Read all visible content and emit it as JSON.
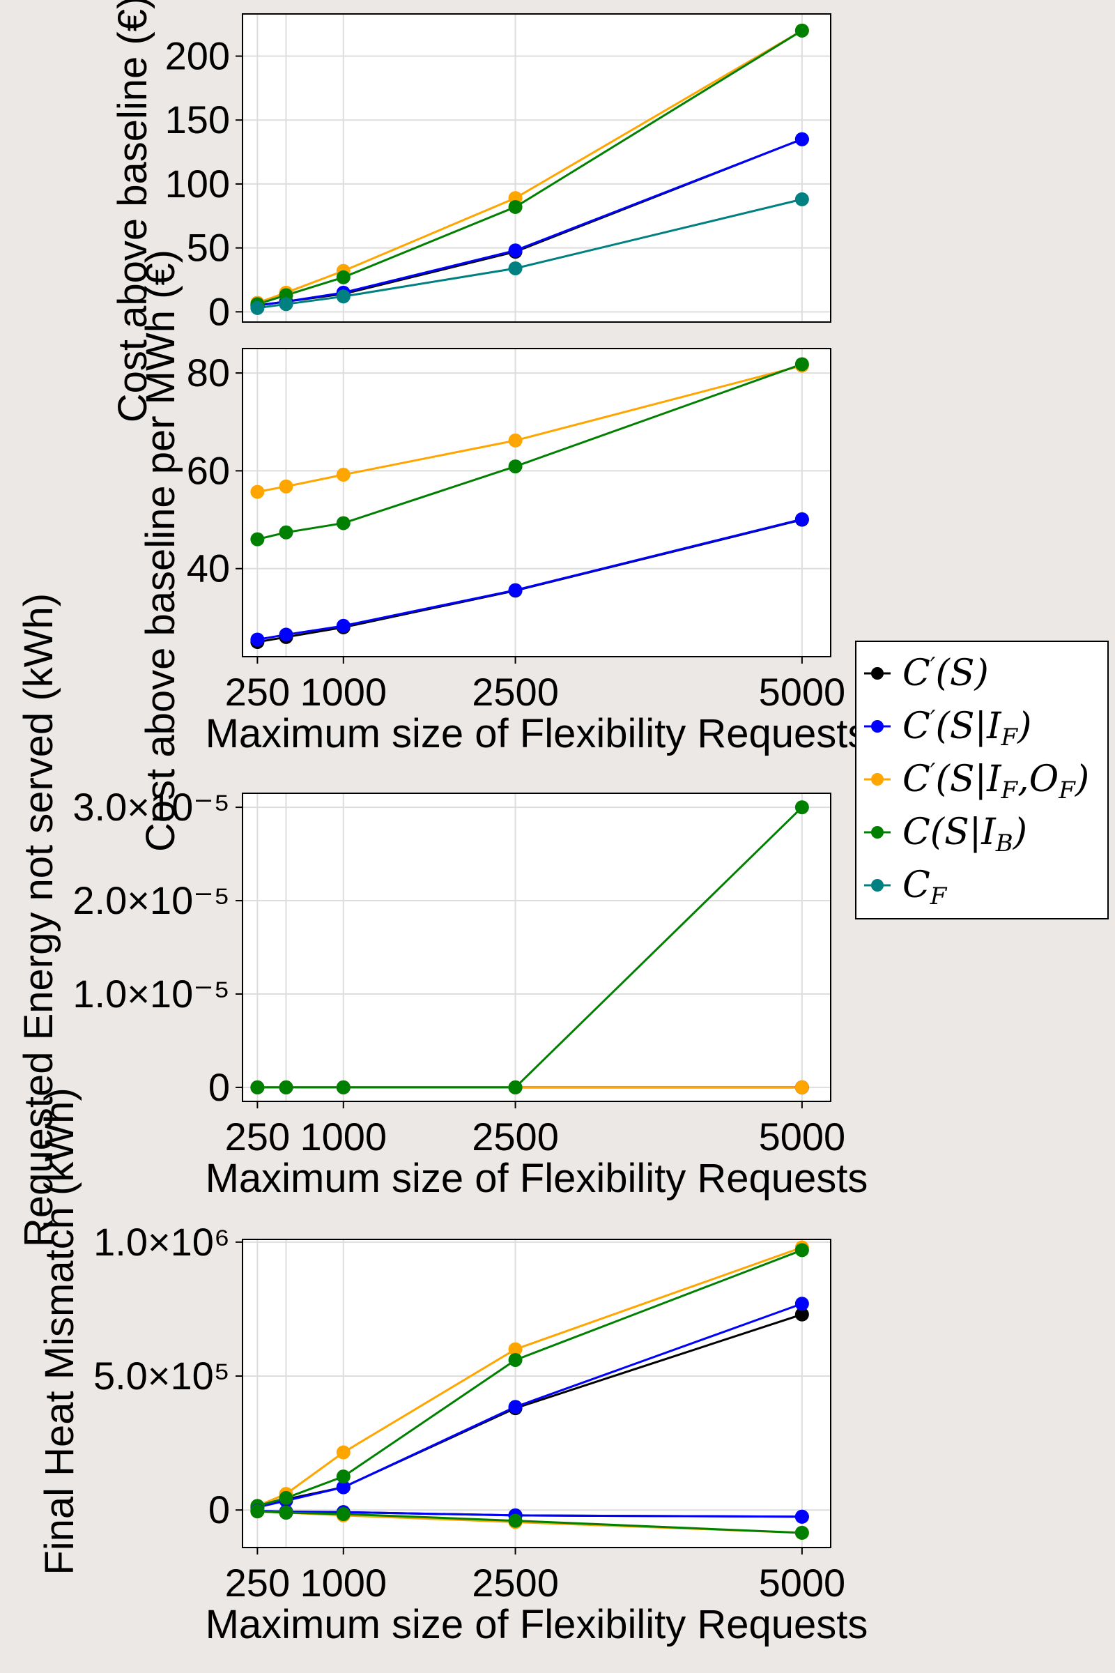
{
  "chart_data": [
    {
      "type": "line",
      "x": [
        250,
        500,
        1000,
        2500,
        5000
      ],
      "xticks": [
        "250",
        "1000",
        "2500",
        "5000"
      ],
      "xtick_values": [
        250,
        1000,
        2500,
        5000
      ],
      "ylim": [
        -8,
        233
      ],
      "yticks": [
        "0",
        "50",
        "100",
        "150",
        "200"
      ],
      "ytick_values": [
        0,
        50,
        100,
        150,
        200
      ],
      "ylabel": "Cost above baseline (€)",
      "xlabel": "",
      "grid": true,
      "series": [
        {
          "name": "C′(S)",
          "color": "#000000",
          "values": [
            5,
            8,
            14,
            47,
            135
          ]
        },
        {
          "name": "C′(S|I_F)",
          "color": "#0000ff",
          "values": [
            5,
            8,
            15,
            48,
            135
          ]
        },
        {
          "name": "C′(S|I_F,O_F)",
          "color": "#ffa500",
          "values": [
            7,
            15,
            32,
            89,
            220
          ]
        },
        {
          "name": "C(S|I_B)",
          "color": "#008000",
          "values": [
            6,
            13,
            27,
            82,
            220
          ]
        },
        {
          "name": "C_F",
          "color": "#008080",
          "values": [
            3,
            6,
            12,
            34,
            88
          ]
        }
      ]
    },
    {
      "type": "line",
      "x": [
        250,
        500,
        1000,
        2500,
        5000
      ],
      "xticks": [
        "250",
        "1000",
        "2500",
        "5000"
      ],
      "xtick_values": [
        250,
        1000,
        2500,
        5000
      ],
      "ylim": [
        22,
        85
      ],
      "yticks": [
        "40",
        "60",
        "80"
      ],
      "ytick_values": [
        40,
        60,
        80
      ],
      "ylabel": "Cost above baseline per MWh (€)",
      "xlabel": "Maximum size of Flexibility Requests",
      "grid": true,
      "series": [
        {
          "name": "C′(S)",
          "color": "#000000",
          "values": [
            25,
            26,
            28,
            35.5,
            50
          ]
        },
        {
          "name": "C′(S|I_F)",
          "color": "#0000ff",
          "values": [
            25.5,
            26.5,
            28.3,
            35.6,
            50.1
          ]
        },
        {
          "name": "C′(S|I_F,O_F)",
          "color": "#ffa500",
          "values": [
            55.7,
            56.8,
            59.2,
            66.2,
            81.5
          ]
        },
        {
          "name": "C(S|I_B)",
          "color": "#008000",
          "values": [
            46,
            47.4,
            49.3,
            60.9,
            81.8
          ]
        }
      ]
    },
    {
      "type": "line",
      "x": [
        250,
        500,
        1000,
        2500,
        5000
      ],
      "xticks": [
        "250",
        "1000",
        "2500",
        "5000"
      ],
      "xtick_values": [
        250,
        1000,
        2500,
        5000
      ],
      "ylim": [
        -1.5e-06,
        3.15e-05
      ],
      "yticks": [
        "0",
        "1.0×10⁻⁵",
        "2.0×10⁻⁵",
        "3.0×10⁻⁵"
      ],
      "ytick_values": [
        0,
        1e-05,
        2e-05,
        3e-05
      ],
      "ylabel": "Requested Energy not served (kWh)",
      "xlabel": "Maximum size of Flexibility Requests",
      "grid": true,
      "series": [
        {
          "name": "C′(S)",
          "color": "#000000",
          "values": [
            0,
            0,
            0,
            0,
            0
          ]
        },
        {
          "name": "C′(S|I_F)",
          "color": "#0000ff",
          "values": [
            0,
            0,
            0,
            0,
            0
          ]
        },
        {
          "name": "C′(S|I_F,O_F)",
          "color": "#ffa500",
          "values": [
            0,
            0,
            0,
            0,
            0
          ]
        },
        {
          "name": "C(S|I_B)",
          "color": "#008000",
          "values": [
            0,
            0,
            0,
            0,
            3e-05
          ]
        }
      ]
    },
    {
      "type": "line",
      "x": [
        250,
        500,
        1000,
        2500,
        5000
      ],
      "xticks": [
        "250",
        "1000",
        "2500",
        "5000"
      ],
      "xtick_values": [
        250,
        1000,
        2500,
        5000
      ],
      "ylim": [
        -140000,
        1010000
      ],
      "yticks": [
        "0",
        "5.0×10⁵",
        "1.0×10⁶"
      ],
      "ytick_values": [
        0,
        500000,
        1000000
      ],
      "ylabel": "Final Heat Mismatch (kWh)",
      "xlabel": "Maximum size of Flexibility Requests",
      "grid": true,
      "series": [
        {
          "name": "C′(S)",
          "color": "#000000",
          "values": [
            10000,
            40000,
            85000,
            380000,
            730000
          ]
        },
        {
          "name": "C′(S|I_F)",
          "color": "#0000ff",
          "values": [
            10000,
            35000,
            85000,
            385000,
            770000
          ]
        },
        {
          "name": "C′(S|I_F,O_F)",
          "color": "#ffa500",
          "values": [
            15000,
            60000,
            215000,
            600000,
            980000
          ]
        },
        {
          "name": "C(S|I_B)",
          "color": "#008000",
          "values": [
            15000,
            45000,
            125000,
            560000,
            970000
          ]
        },
        {
          "name": "C′(S)",
          "color": "#000000",
          "values": [
            -5000,
            -8000,
            -8000,
            -20000,
            -25000
          ]
        },
        {
          "name": "C′(S|I_F)",
          "color": "#0000ff",
          "values": [
            -3000,
            -6000,
            -8000,
            -20000,
            -25000
          ]
        },
        {
          "name": "C′(S|I_F,O_F)",
          "color": "#ffa500",
          "values": [
            -5000,
            -10000,
            -20000,
            -45000,
            -85000
          ]
        },
        {
          "name": "C(S|I_B)",
          "color": "#008000",
          "values": [
            -5000,
            -10000,
            -15000,
            -40000,
            -85000
          ]
        }
      ]
    }
  ],
  "legend": [
    {
      "base": "C",
      "prime": "′",
      "args": "(S)",
      "color": "#000000"
    },
    {
      "base": "C",
      "prime": "′",
      "args": "(S|I",
      "sub": "F",
      "tail": ")",
      "color": "#0000ff"
    },
    {
      "base": "C",
      "prime": "′",
      "args": "(S|I",
      "sub": "F",
      "mid": ",O",
      "sub2": "F",
      "tail": ")",
      "color": "#ffa500"
    },
    {
      "base": "C",
      "prime": "",
      "args": "(S|I",
      "sub": "B",
      "tail": ")",
      "color": "#008000"
    },
    {
      "base": "C",
      "prime": "",
      "args": "",
      "sub": "F",
      "tail": "",
      "color": "#008080"
    }
  ]
}
